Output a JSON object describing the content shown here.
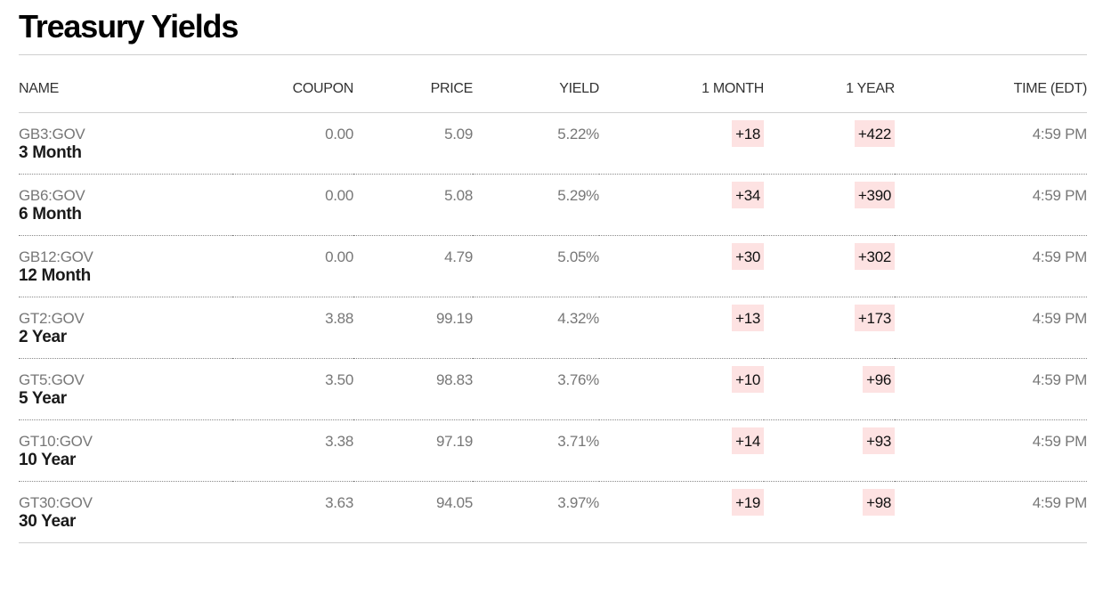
{
  "title": "Treasury Yields",
  "colors": {
    "change_highlight": "#fde2e2",
    "muted_text": "#777777",
    "strong_text": "#1a1a1a"
  },
  "columns": {
    "name": "NAME",
    "coupon": "COUPON",
    "price": "PRICE",
    "yield": "YIELD",
    "one_month": "1 MONTH",
    "one_year": "1 YEAR",
    "time": "TIME (EDT)"
  },
  "rows": [
    {
      "ticker": "GB3:GOV",
      "name": "3 Month",
      "coupon": "0.00",
      "price": "5.09",
      "yield": "5.22%",
      "one_month": "+18",
      "one_year": "+422",
      "time": "4:59 PM"
    },
    {
      "ticker": "GB6:GOV",
      "name": "6 Month",
      "coupon": "0.00",
      "price": "5.08",
      "yield": "5.29%",
      "one_month": "+34",
      "one_year": "+390",
      "time": "4:59 PM"
    },
    {
      "ticker": "GB12:GOV",
      "name": "12 Month",
      "coupon": "0.00",
      "price": "4.79",
      "yield": "5.05%",
      "one_month": "+30",
      "one_year": "+302",
      "time": "4:59 PM"
    },
    {
      "ticker": "GT2:GOV",
      "name": "2 Year",
      "coupon": "3.88",
      "price": "99.19",
      "yield": "4.32%",
      "one_month": "+13",
      "one_year": "+173",
      "time": "4:59 PM"
    },
    {
      "ticker": "GT5:GOV",
      "name": "5 Year",
      "coupon": "3.50",
      "price": "98.83",
      "yield": "3.76%",
      "one_month": "+10",
      "one_year": "+96",
      "time": "4:59 PM"
    },
    {
      "ticker": "GT10:GOV",
      "name": "10 Year",
      "coupon": "3.38",
      "price": "97.19",
      "yield": "3.71%",
      "one_month": "+14",
      "one_year": "+93",
      "time": "4:59 PM"
    },
    {
      "ticker": "GT30:GOV",
      "name": "30 Year",
      "coupon": "3.63",
      "price": "94.05",
      "yield": "3.97%",
      "one_month": "+19",
      "one_year": "+98",
      "time": "4:59 PM"
    }
  ]
}
